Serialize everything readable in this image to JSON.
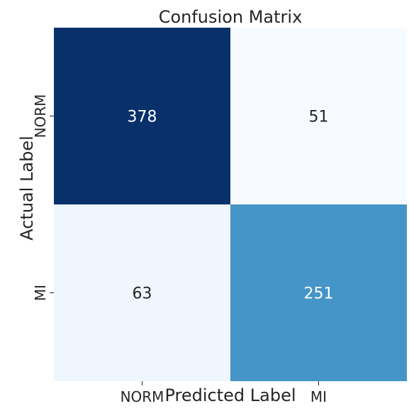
{
  "chart_data": {
    "type": "heatmap",
    "title": "Confusion Matrix",
    "xlabel": "Predicted Label",
    "ylabel": "Actual Label",
    "x_categories": [
      "NORM",
      "MI"
    ],
    "y_categories": [
      "NORM",
      "MI"
    ],
    "values": [
      [
        378,
        51
      ],
      [
        63,
        251
      ]
    ],
    "colormap": "Blues",
    "colorbar": false,
    "grid": false
  }
}
